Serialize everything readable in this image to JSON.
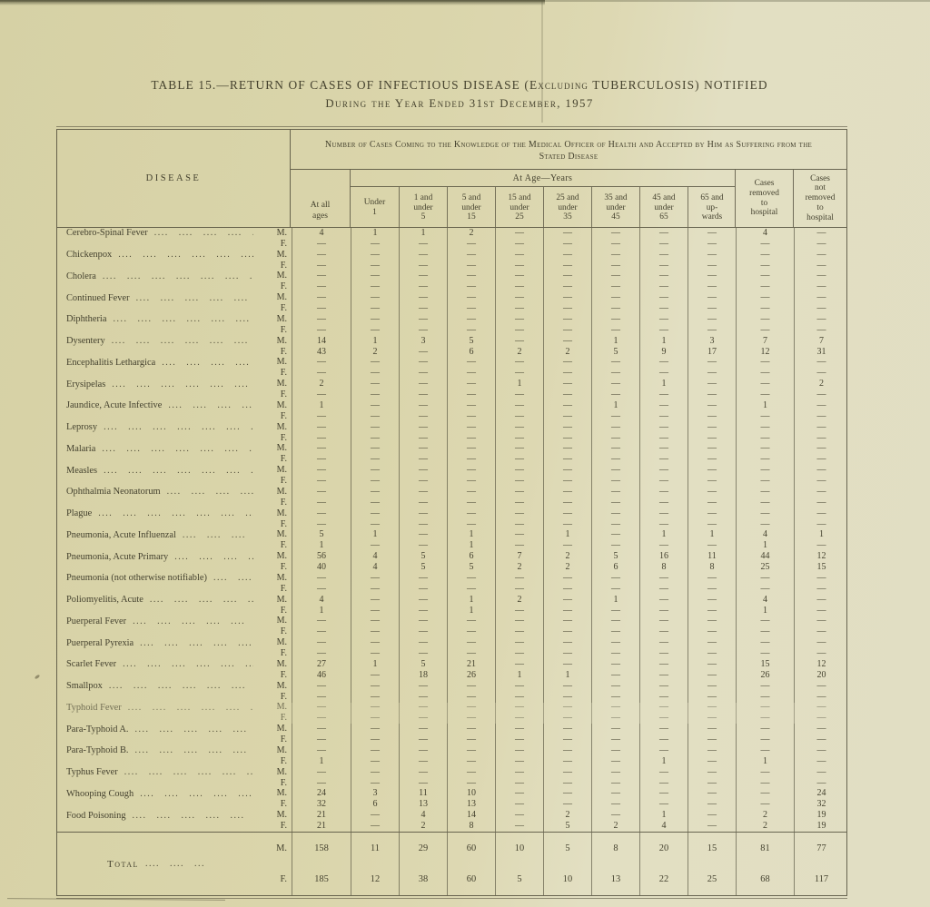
{
  "doc": {
    "title_line1": "TABLE 15.—RETURN OF CASES OF INFECTIOUS DISEASE (Excluding TUBERCULOSIS) NOTIFIED",
    "title_line2": "During the Year Ended 31st December, 1957"
  },
  "table": {
    "disease_header": "DISEASE",
    "span_header": "Number of Cases Coming to the Knowledge of the Medical Officer of Health and Accepted by Him as Suffering from the Stated Disease",
    "age_band_label": "At Age—Years",
    "all_ages_label": "At all\nages",
    "age_columns": [
      "Under\n1",
      "1 and\nunder\n5",
      "5 and\nunder\n15",
      "15 and\nunder\n25",
      "25 and\nunder\n35",
      "35 and\nunder\n45",
      "45 and\nunder\n65",
      "65 and\nup-\nwards"
    ],
    "removed_label": "Cases\nremoved\nto\nhospital",
    "not_removed_label": "Cases\nnot\nremoved\nto\nhospital",
    "male_label": "M.",
    "female_label": "F.",
    "leader_dots": ".... .... .... .... .... .... .... .... .... ....",
    "rows": [
      {
        "disease": "Cerebro-Spinal Fever",
        "m": [
          "4",
          "1",
          "1",
          "2",
          "—",
          "—",
          "—",
          "—",
          "—",
          "4",
          "—"
        ],
        "f": [
          "—",
          "—",
          "—",
          "—",
          "—",
          "—",
          "—",
          "—",
          "—",
          "—",
          "—"
        ]
      },
      {
        "disease": "Chickenpox",
        "m": [
          "—",
          "—",
          "—",
          "—",
          "—",
          "—",
          "—",
          "—",
          "—",
          "—",
          "—"
        ],
        "f": [
          "—",
          "—",
          "—",
          "—",
          "—",
          "—",
          "—",
          "—",
          "—",
          "—",
          "—"
        ]
      },
      {
        "disease": "Cholera",
        "m": [
          "—",
          "—",
          "—",
          "—",
          "—",
          "—",
          "—",
          "—",
          "—",
          "—",
          "—"
        ],
        "f": [
          "—",
          "—",
          "—",
          "—",
          "—",
          "—",
          "—",
          "—",
          "—",
          "—",
          "—"
        ]
      },
      {
        "disease": "Continued Fever",
        "m": [
          "—",
          "—",
          "—",
          "—",
          "—",
          "—",
          "—",
          "—",
          "—",
          "—",
          "—"
        ],
        "f": [
          "—",
          "—",
          "—",
          "—",
          "—",
          "—",
          "—",
          "—",
          "—",
          "—",
          "—"
        ]
      },
      {
        "disease": "Diphtheria",
        "m": [
          "—",
          "—",
          "—",
          "—",
          "—",
          "—",
          "—",
          "—",
          "—",
          "—",
          "—"
        ],
        "f": [
          "—",
          "—",
          "—",
          "—",
          "—",
          "—",
          "—",
          "—",
          "—",
          "—",
          "—"
        ]
      },
      {
        "disease": "Dysentery",
        "m": [
          "14",
          "1",
          "3",
          "5",
          "—",
          "—",
          "1",
          "1",
          "3",
          "7",
          "7"
        ],
        "f": [
          "43",
          "2",
          "—",
          "6",
          "2",
          "2",
          "5",
          "9",
          "17",
          "12",
          "31"
        ]
      },
      {
        "disease": "Encephalitis Lethargica",
        "m": [
          "—",
          "—",
          "—",
          "—",
          "—",
          "—",
          "—",
          "—",
          "—",
          "—",
          "—"
        ],
        "f": [
          "—",
          "—",
          "—",
          "—",
          "—",
          "—",
          "—",
          "—",
          "—",
          "—",
          "—"
        ]
      },
      {
        "disease": "Erysipelas",
        "m": [
          "2",
          "—",
          "—",
          "—",
          "1",
          "—",
          "—",
          "1",
          "—",
          "—",
          "2"
        ],
        "f": [
          "—",
          "—",
          "—",
          "—",
          "—",
          "—",
          "—",
          "—",
          "—",
          "—",
          "—"
        ]
      },
      {
        "disease": "Jaundice, Acute Infective",
        "m": [
          "1",
          "—",
          "—",
          "—",
          "—",
          "—",
          "1",
          "—",
          "—",
          "1",
          "—"
        ],
        "f": [
          "—",
          "—",
          "—",
          "—",
          "—",
          "—",
          "—",
          "—",
          "—",
          "—",
          "—"
        ]
      },
      {
        "disease": "Leprosy",
        "m": [
          "—",
          "—",
          "—",
          "—",
          "—",
          "—",
          "—",
          "—",
          "—",
          "—",
          "—"
        ],
        "f": [
          "—",
          "—",
          "—",
          "—",
          "—",
          "—",
          "—",
          "—",
          "—",
          "—",
          "—"
        ]
      },
      {
        "disease": "Malaria",
        "m": [
          "—",
          "—",
          "—",
          "—",
          "—",
          "—",
          "—",
          "—",
          "—",
          "—",
          "—"
        ],
        "f": [
          "—",
          "—",
          "—",
          "—",
          "—",
          "—",
          "—",
          "—",
          "—",
          "—",
          "—"
        ]
      },
      {
        "disease": "Measles",
        "m": [
          "—",
          "—",
          "—",
          "—",
          "—",
          "—",
          "—",
          "—",
          "—",
          "—",
          "—"
        ],
        "f": [
          "—",
          "—",
          "—",
          "—",
          "—",
          "—",
          "—",
          "—",
          "—",
          "—",
          "—"
        ]
      },
      {
        "disease": "Ophthalmia Neonatorum",
        "m": [
          "—",
          "—",
          "—",
          "—",
          "—",
          "—",
          "—",
          "—",
          "—",
          "—",
          "—"
        ],
        "f": [
          "—",
          "—",
          "—",
          "—",
          "—",
          "—",
          "—",
          "—",
          "—",
          "—",
          "—"
        ]
      },
      {
        "disease": "Plague",
        "m": [
          "—",
          "—",
          "—",
          "—",
          "—",
          "—",
          "—",
          "—",
          "—",
          "—",
          "—"
        ],
        "f": [
          "—",
          "—",
          "—",
          "—",
          "—",
          "—",
          "—",
          "—",
          "—",
          "—",
          "—"
        ]
      },
      {
        "disease": "Pneumonia, Acute Influenzal",
        "m": [
          "5",
          "1",
          "—",
          "1",
          "—",
          "1",
          "—",
          "1",
          "1",
          "4",
          "1"
        ],
        "f": [
          "1",
          "—",
          "—",
          "1",
          "—",
          "—",
          "—",
          "—",
          "—",
          "1",
          "—"
        ]
      },
      {
        "disease": "Pneumonia, Acute Primary",
        "m": [
          "56",
          "4",
          "5",
          "6",
          "7",
          "2",
          "5",
          "16",
          "11",
          "44",
          "12"
        ],
        "f": [
          "40",
          "4",
          "5",
          "5",
          "2",
          "2",
          "6",
          "8",
          "8",
          "25",
          "15"
        ]
      },
      {
        "disease": "Pneumonia (not otherwise notifiable)",
        "m": [
          "—",
          "—",
          "—",
          "—",
          "—",
          "—",
          "—",
          "—",
          "—",
          "—",
          "—"
        ],
        "f": [
          "—",
          "—",
          "—",
          "—",
          "—",
          "—",
          "—",
          "—",
          "—",
          "—",
          "—"
        ]
      },
      {
        "disease": "Poliomyelitis, Acute",
        "m": [
          "4",
          "—",
          "—",
          "1",
          "2",
          "—",
          "1",
          "—",
          "—",
          "4",
          "—"
        ],
        "f": [
          "1",
          "—",
          "—",
          "1",
          "—",
          "—",
          "—",
          "—",
          "—",
          "1",
          "—"
        ]
      },
      {
        "disease": "Puerperal Fever",
        "m": [
          "—",
          "—",
          "—",
          "—",
          "—",
          "—",
          "—",
          "—",
          "—",
          "—",
          "—"
        ],
        "f": [
          "—",
          "—",
          "—",
          "—",
          "—",
          "—",
          "—",
          "—",
          "—",
          "—",
          "—"
        ]
      },
      {
        "disease": "Puerperal Pyrexia",
        "m": [
          "—",
          "—",
          "—",
          "—",
          "—",
          "—",
          "—",
          "—",
          "—",
          "—",
          "—"
        ],
        "f": [
          "—",
          "—",
          "—",
          "—",
          "—",
          "—",
          "—",
          "—",
          "—",
          "—",
          "—"
        ]
      },
      {
        "disease": "Scarlet Fever",
        "m": [
          "27",
          "1",
          "5",
          "21",
          "—",
          "—",
          "—",
          "—",
          "—",
          "15",
          "12"
        ],
        "f": [
          "46",
          "—",
          "18",
          "26",
          "1",
          "1",
          "—",
          "—",
          "—",
          "26",
          "20"
        ]
      },
      {
        "disease": "Smallpox",
        "m": [
          "—",
          "—",
          "—",
          "—",
          "—",
          "—",
          "—",
          "—",
          "—",
          "—",
          "—"
        ],
        "f": [
          "—",
          "—",
          "—",
          "—",
          "—",
          "—",
          "—",
          "—",
          "—",
          "—",
          "—"
        ]
      },
      {
        "disease": "Typhoid Fever",
        "m": [
          "—",
          "—",
          "—",
          "—",
          "—",
          "—",
          "—",
          "—",
          "—",
          "—",
          "—"
        ],
        "f": [
          "—",
          "—",
          "—",
          "—",
          "—",
          "—",
          "—",
          "—",
          "—",
          "—",
          "—"
        ]
      },
      {
        "disease": "Para-Typhoid A.",
        "m": [
          "—",
          "—",
          "—",
          "—",
          "—",
          "—",
          "—",
          "—",
          "—",
          "—",
          "—"
        ],
        "f": [
          "—",
          "—",
          "—",
          "—",
          "—",
          "—",
          "—",
          "—",
          "—",
          "—",
          "—"
        ]
      },
      {
        "disease": "Para-Typhoid B.",
        "m": [
          "—",
          "—",
          "—",
          "—",
          "—",
          "—",
          "—",
          "—",
          "—",
          "—",
          "—"
        ],
        "f": [
          "1",
          "—",
          "—",
          "—",
          "—",
          "—",
          "—",
          "1",
          "—",
          "1",
          "—"
        ]
      },
      {
        "disease": "Typhus Fever",
        "m": [
          "—",
          "—",
          "—",
          "—",
          "—",
          "—",
          "—",
          "—",
          "—",
          "—",
          "—"
        ],
        "f": [
          "—",
          "—",
          "—",
          "—",
          "—",
          "—",
          "—",
          "—",
          "—",
          "—",
          "—"
        ]
      },
      {
        "disease": "Whooping Cough",
        "m": [
          "24",
          "3",
          "11",
          "10",
          "—",
          "—",
          "—",
          "—",
          "—",
          "—",
          "24"
        ],
        "f": [
          "32",
          "6",
          "13",
          "13",
          "—",
          "—",
          "—",
          "—",
          "—",
          "—",
          "32"
        ]
      },
      {
        "disease": "Food Poisoning",
        "m": [
          "21",
          "—",
          "4",
          "14",
          "—",
          "2",
          "—",
          "1",
          "—",
          "2",
          "19"
        ],
        "f": [
          "21",
          "—",
          "2",
          "8",
          "—",
          "5",
          "2",
          "4",
          "—",
          "2",
          "19"
        ]
      }
    ],
    "total": {
      "label": "Total",
      "m": [
        "158",
        "11",
        "29",
        "60",
        "10",
        "5",
        "8",
        "20",
        "15",
        "81",
        "77"
      ],
      "f": [
        "185",
        "12",
        "38",
        "60",
        "5",
        "10",
        "13",
        "22",
        "25",
        "68",
        "117"
      ]
    }
  },
  "colors": {
    "paper": "#dcd7ae",
    "ink": "#45422f"
  }
}
